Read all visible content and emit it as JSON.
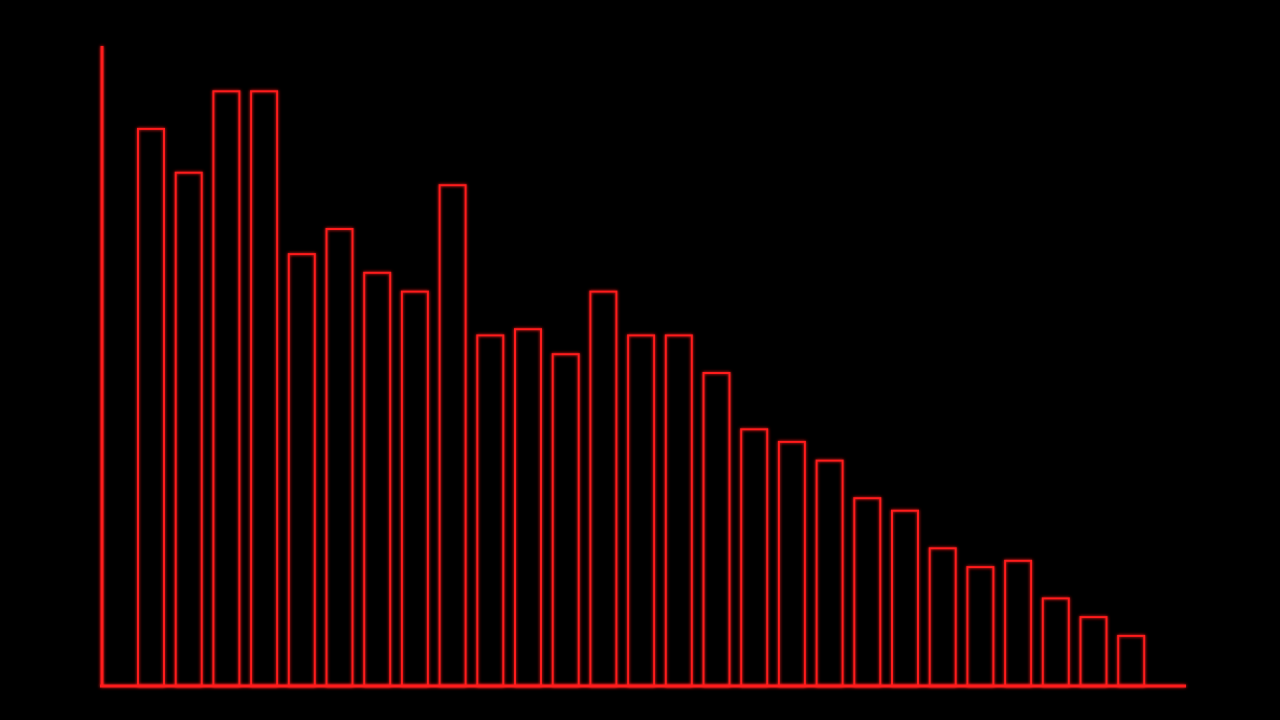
{
  "colors": {
    "background": "#000000",
    "bar_stroke": "#ff1a1a",
    "axis": "#ff1a1a"
  },
  "chart_data": {
    "type": "bar",
    "style": "outlined bars, neon red glow, no fill",
    "title": "",
    "xlabel": "",
    "ylabel": "",
    "grid": false,
    "legend": "none",
    "ylim": [
      0,
      100
    ],
    "values": [
      89,
      82,
      95,
      95,
      69,
      73,
      66,
      63,
      80,
      56,
      57,
      53,
      63,
      56,
      56,
      50,
      41,
      39,
      36,
      30,
      28,
      22,
      19,
      20,
      14,
      11,
      8
    ]
  }
}
